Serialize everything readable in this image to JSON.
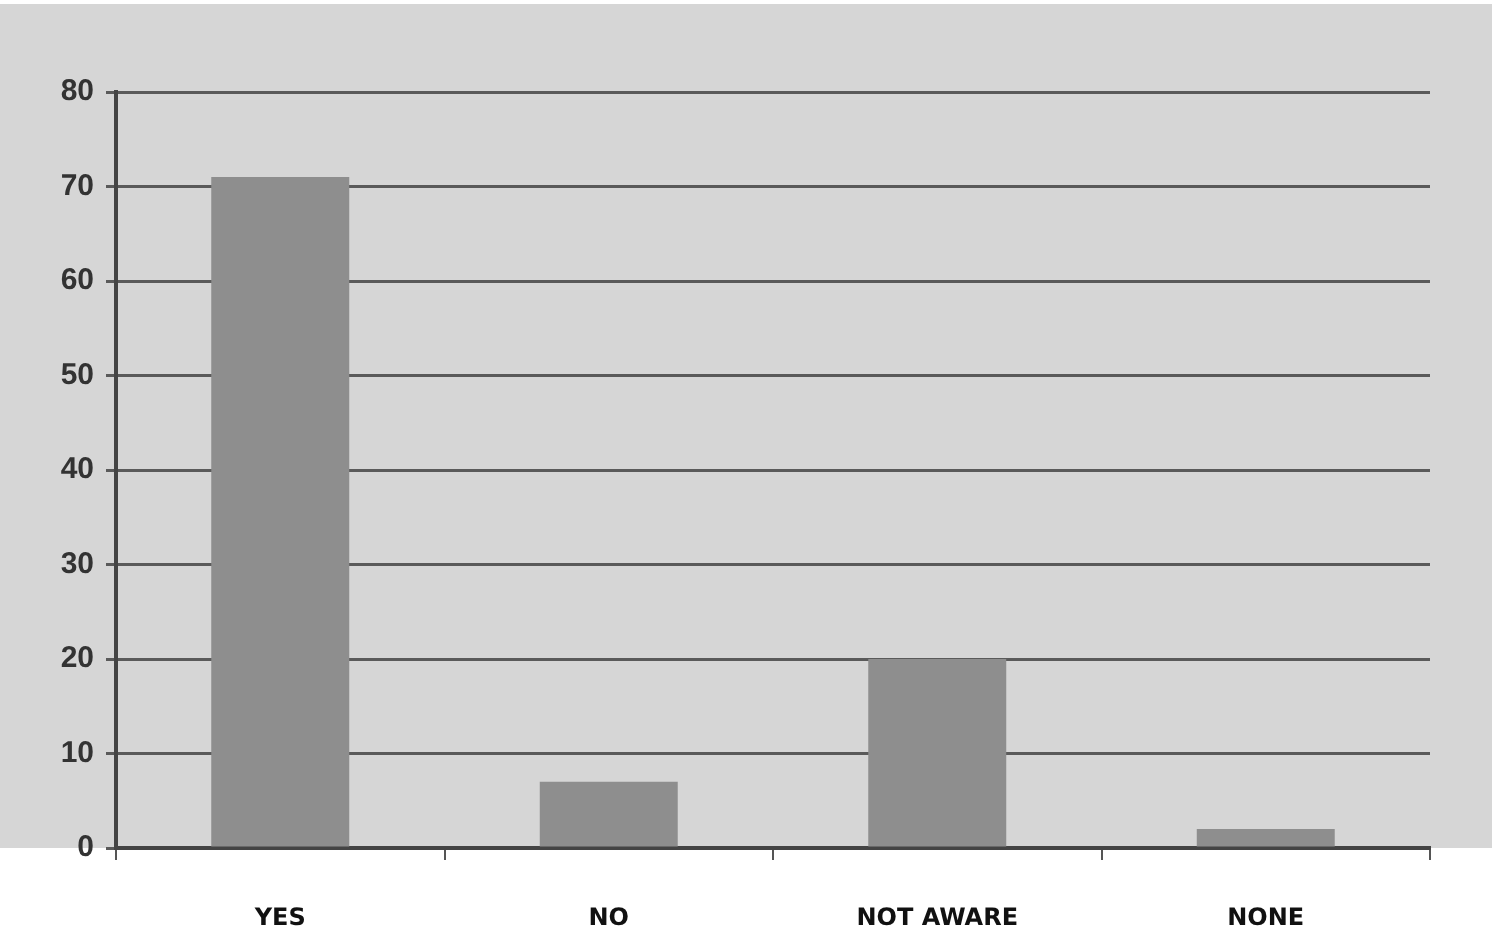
{
  "chart_data": {
    "type": "bar",
    "categories": [
      "YES",
      "NO",
      "NOT AWARE",
      "NONE"
    ],
    "values": [
      71,
      7,
      20,
      2
    ],
    "color": "#8e8e8e",
    "ylim": [
      0,
      80
    ],
    "yticks": [
      0,
      10,
      20,
      30,
      40,
      50,
      60,
      70,
      80
    ],
    "grid": "y",
    "legend": false
  }
}
